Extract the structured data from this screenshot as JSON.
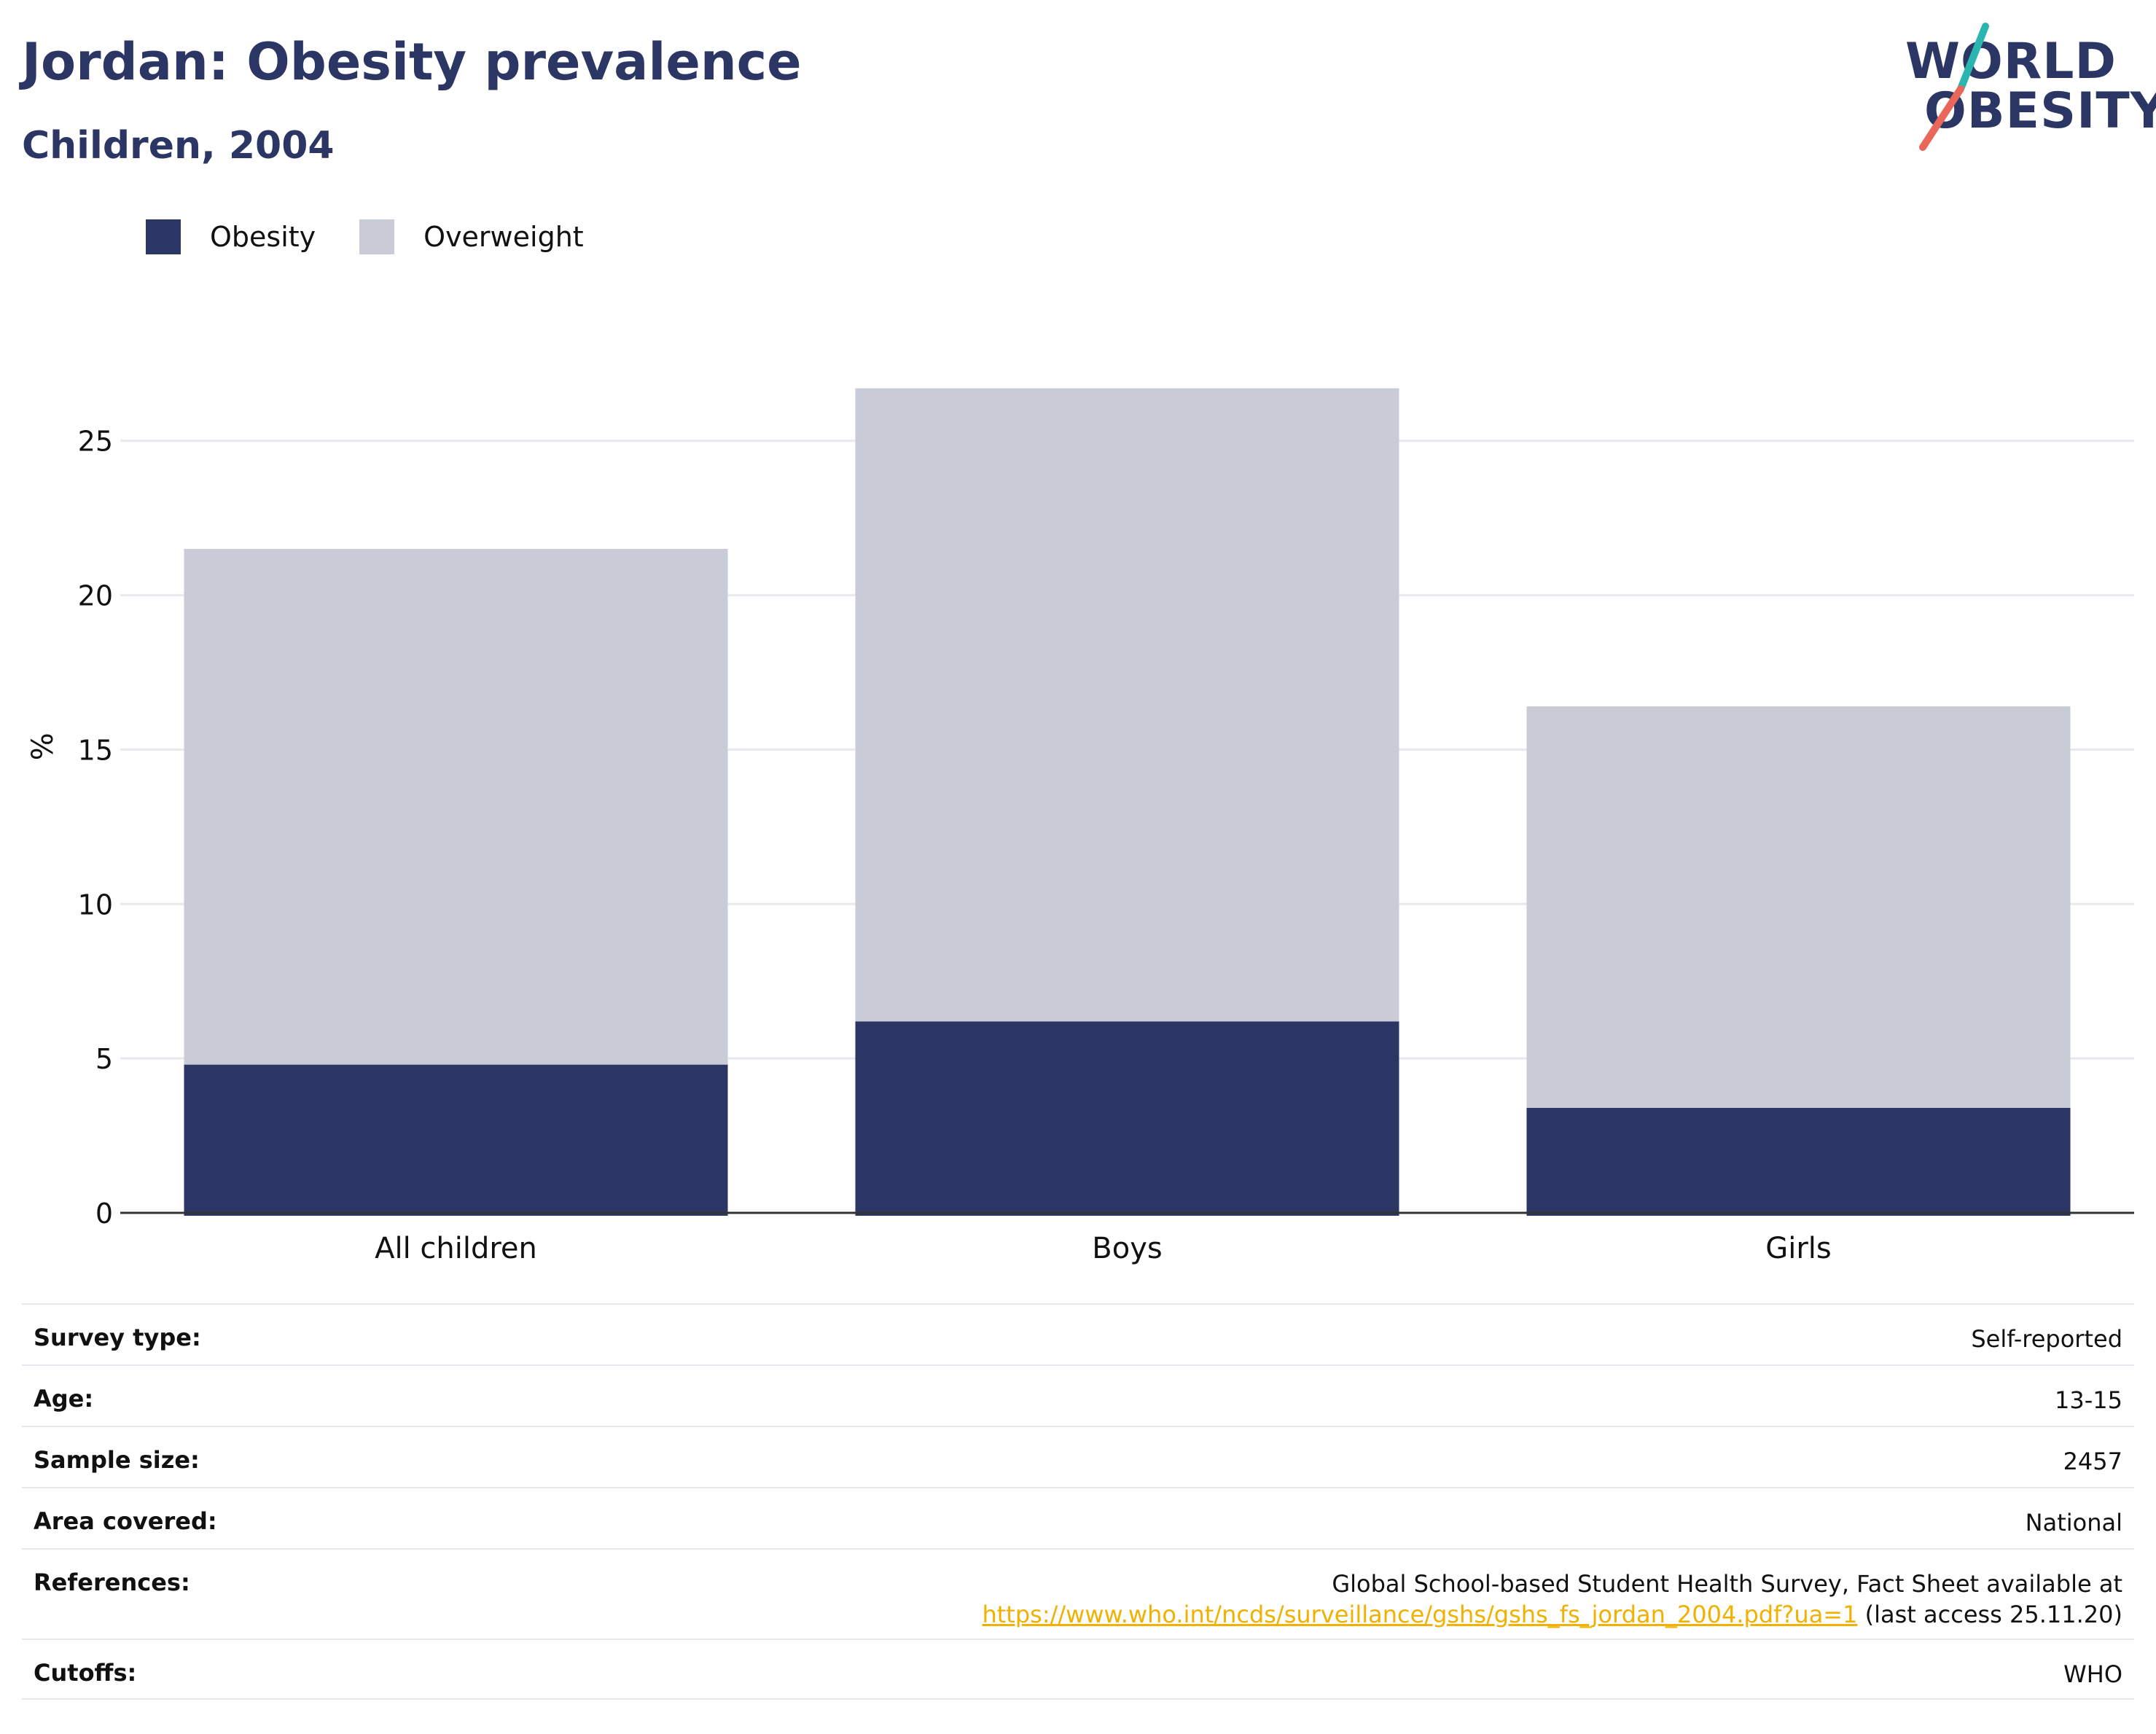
{
  "header": {
    "title": "Jordan: Obesity prevalence",
    "subtitle": "Children, 2004"
  },
  "logo": {
    "line1": "WORLD",
    "line2": "OBESITY",
    "accent_colors": [
      "#2bb5b0",
      "#e8675a"
    ]
  },
  "legend": [
    {
      "label": "Obesity",
      "color": "#2b3664"
    },
    {
      "label": "Overweight",
      "color": "#c9cbd6"
    }
  ],
  "chart_data": {
    "type": "bar",
    "stacked": true,
    "categories": [
      "All children",
      "Boys",
      "Girls"
    ],
    "series": [
      {
        "name": "Obesity",
        "values": [
          4.8,
          6.2,
          3.4
        ],
        "color": "#2b3664"
      },
      {
        "name": "Overweight",
        "values": [
          16.7,
          20.5,
          13.0
        ],
        "color": "#c9cbd6"
      }
    ],
    "ylabel": "%",
    "ylim": [
      0,
      27
    ],
    "yticks": [
      0,
      5,
      10,
      15,
      20,
      25
    ],
    "grid": true
  },
  "info": {
    "rows": [
      {
        "key": "Survey type:",
        "value": "Self-reported"
      },
      {
        "key": "Age:",
        "value": "13-15"
      },
      {
        "key": "Sample size:",
        "value": "2457"
      },
      {
        "key": "Area covered:",
        "value": "National"
      },
      {
        "key": "References:",
        "value": "Global School-based Student Health Survey, Fact Sheet available at",
        "link": "https://www.who.int/ncds/surveillance/gshs/gshs_fs_jordan_2004.pdf?ua=1",
        "suffix": " (last access 25.11.20)"
      },
      {
        "key": "Cutoffs:",
        "value": "WHO"
      }
    ]
  }
}
